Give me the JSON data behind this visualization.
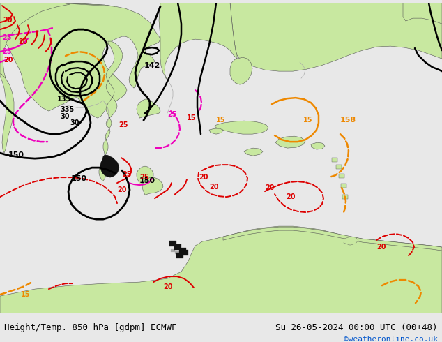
{
  "fig_width": 6.34,
  "fig_height": 4.9,
  "dpi": 100,
  "bg_color": "#e8e8e8",
  "sea_color": "#e8e8e8",
  "land_color": "#c8e8a0",
  "bottom_bar_color": "#e8e8e8",
  "bottom_text_left": "Height/Temp. 850 hPa [gdpm] ECMWF",
  "bottom_text_right": "Su 26-05-2024 00:00 UTC (00+48)",
  "bottom_text_credit": "©weatheronline.co.uk",
  "bottom_text_left_color": "#000000",
  "bottom_text_right_color": "#000000",
  "bottom_text_credit_color": "#0055cc",
  "title_fontsize": 9,
  "credit_fontsize": 8,
  "black_lw": 1.8,
  "red_lw": 1.4,
  "magenta_lw": 1.6,
  "orange_lw": 1.8,
  "red_color": "#dd0000",
  "magenta_color": "#ee00bb",
  "orange_color": "#ee8800",
  "black_color": "#000000",
  "gray_border_color": "#aaaaaa"
}
